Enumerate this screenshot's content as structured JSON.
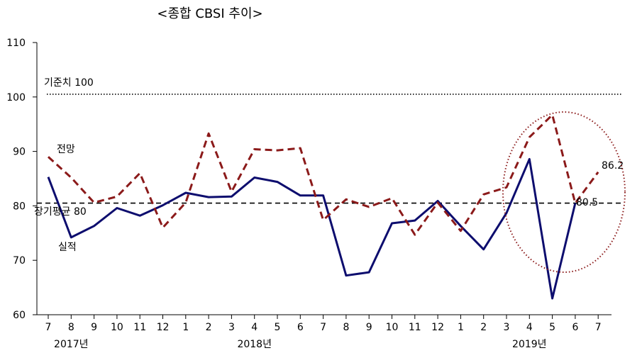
{
  "chart_data": {
    "type": "line",
    "title": "<종합 CBSI 추이>",
    "xlabel": "",
    "ylabel": "",
    "ylim": [
      60,
      110
    ],
    "yticks": [
      "60",
      "70",
      "80",
      "90",
      "100",
      "110"
    ],
    "categories": [
      "7",
      "8",
      "9",
      "10",
      "11",
      "12",
      "1",
      "2",
      "3",
      "4",
      "5",
      "6",
      "7",
      "8",
      "9",
      "10",
      "11",
      "12",
      "1",
      "2",
      "3",
      "4",
      "5",
      "6",
      "7"
    ],
    "year_labels": [
      "2017년",
      "2018년",
      "2019년"
    ],
    "series": [
      {
        "name": "실적",
        "color": "#0d0d6e",
        "style": "solid",
        "values": [
          85.3,
          74.2,
          76.3,
          79.6,
          78.2,
          80.1,
          82.4,
          81.6,
          81.7,
          85.2,
          84.4,
          81.9,
          81.9,
          67.2,
          67.8,
          76.8,
          77.3,
          80.9,
          76.3,
          72.0,
          78.7,
          88.6,
          63.0,
          80.5,
          null
        ]
      },
      {
        "name": "전망",
        "color": "#8b1a1a",
        "style": "dashed",
        "values": [
          89.0,
          85.2,
          80.6,
          81.7,
          86.0,
          76.0,
          80.6,
          93.3,
          82.6,
          90.4,
          90.2,
          90.6,
          77.4,
          81.2,
          79.8,
          81.4,
          74.7,
          80.6,
          75.4,
          82.1,
          83.4,
          92.6,
          96.7,
          80.5,
          86.2
        ]
      }
    ],
    "reference_lines": [
      {
        "label": "기준치 100",
        "value": 100.5,
        "style": "dotted"
      },
      {
        "label": "장기평균 80",
        "value": 80.5,
        "style": "dashed"
      }
    ],
    "annotations": {
      "forecast_label": "전망",
      "actual_label": "실적",
      "last_actual": "80.5",
      "last_forecast": "86.2"
    }
  }
}
